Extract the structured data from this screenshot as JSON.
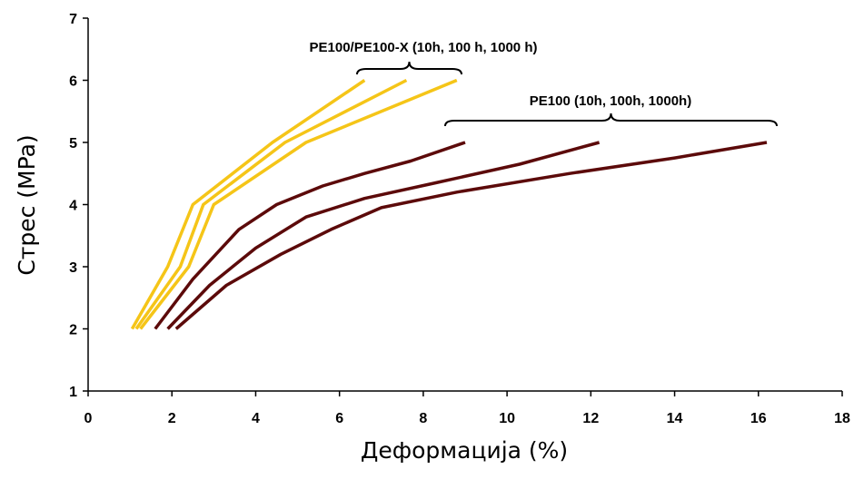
{
  "chart_data": {
    "type": "line",
    "title": "",
    "xlabel": "Деформација (%)",
    "ylabel": "Стрес (MPa)",
    "xlim": [
      0,
      18
    ],
    "ylim": [
      1,
      7
    ],
    "xticks": [
      "0",
      "2",
      "4",
      "6",
      "8",
      "10",
      "12",
      "14",
      "16",
      "18"
    ],
    "yticks": [
      "1",
      "2",
      "3",
      "4",
      "5",
      "6",
      "7"
    ],
    "grid": false,
    "legend": "none",
    "annotations": [
      {
        "text": "PE100/PE100-X (10h, 100 h, 1000 h)",
        "group": "PE100/PE100-X"
      },
      {
        "text": "PE100 (10h, 100h, 1000h)",
        "group": "PE100"
      }
    ],
    "series": [
      {
        "group": "PE100/PE100-X",
        "color": "#F5C518",
        "x": [
          1.05,
          1.9,
          2.5,
          4.4,
          6.6
        ],
        "y": [
          2,
          3,
          4,
          5,
          6
        ]
      },
      {
        "group": "PE100/PE100-X",
        "color": "#F5C518",
        "x": [
          1.15,
          2.2,
          2.75,
          4.7,
          7.6
        ],
        "y": [
          2,
          3,
          4,
          5,
          6
        ]
      },
      {
        "group": "PE100/PE100-X",
        "color": "#F5C518",
        "x": [
          1.25,
          2.4,
          3.0,
          5.2,
          8.8
        ],
        "y": [
          2,
          3,
          4,
          5,
          6
        ]
      },
      {
        "group": "PE100",
        "color": "#5C0A0A",
        "x": [
          1.6,
          2.5,
          3.6,
          4.5,
          5.6,
          6.6,
          7.7,
          9.0
        ],
        "y": [
          2,
          2.8,
          3.6,
          4.0,
          4.3,
          4.5,
          4.7,
          5.0
        ]
      },
      {
        "group": "PE100",
        "color": "#5C0A0A",
        "x": [
          1.9,
          2.9,
          4.0,
          5.2,
          6.6,
          8.3,
          10.3,
          12.2
        ],
        "y": [
          2,
          2.7,
          3.3,
          3.8,
          4.1,
          4.35,
          4.65,
          5.0
        ]
      },
      {
        "group": "PE100",
        "color": "#5C0A0A",
        "x": [
          2.1,
          3.3,
          4.6,
          5.8,
          7.0,
          8.8,
          11.5,
          14.0,
          16.2
        ],
        "y": [
          2,
          2.7,
          3.2,
          3.6,
          3.95,
          4.2,
          4.5,
          4.75,
          5.0
        ]
      }
    ]
  }
}
